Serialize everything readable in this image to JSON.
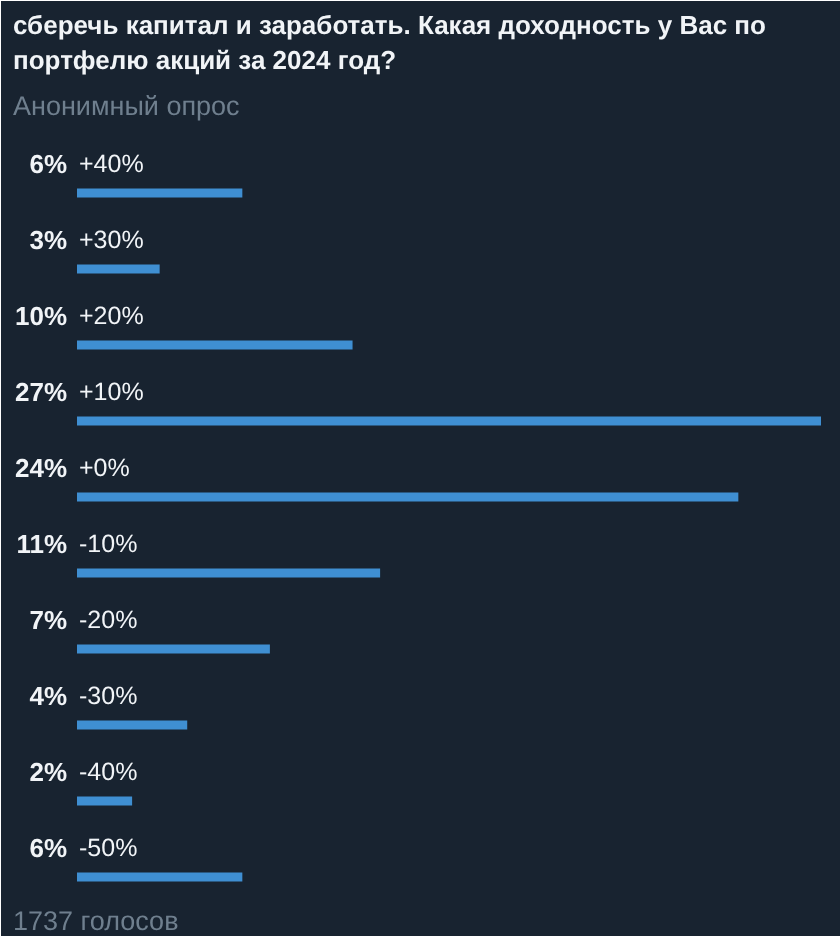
{
  "chart_data": {
    "type": "bar",
    "orientation": "horizontal",
    "title": "сберечь капитал и заработать. Какая доходность у Вас по портфелю акций за 2024 год?",
    "subtitle": "Анонимный опрос",
    "categories": [
      "+40%",
      "+30%",
      "+20%",
      "+10%",
      "+0%",
      "-10%",
      "-20%",
      "-30%",
      "-40%",
      "-50%"
    ],
    "values": [
      6,
      3,
      10,
      27,
      24,
      11,
      7,
      4,
      2,
      6
    ],
    "value_labels": [
      "6%",
      "3%",
      "10%",
      "27%",
      "24%",
      "11%",
      "7%",
      "4%",
      "2%",
      "6%"
    ],
    "color": "#3f8fd2",
    "xlim": [
      0,
      27
    ],
    "tick_labels": "y",
    "annotations": [
      "1737 голосов"
    ]
  }
}
